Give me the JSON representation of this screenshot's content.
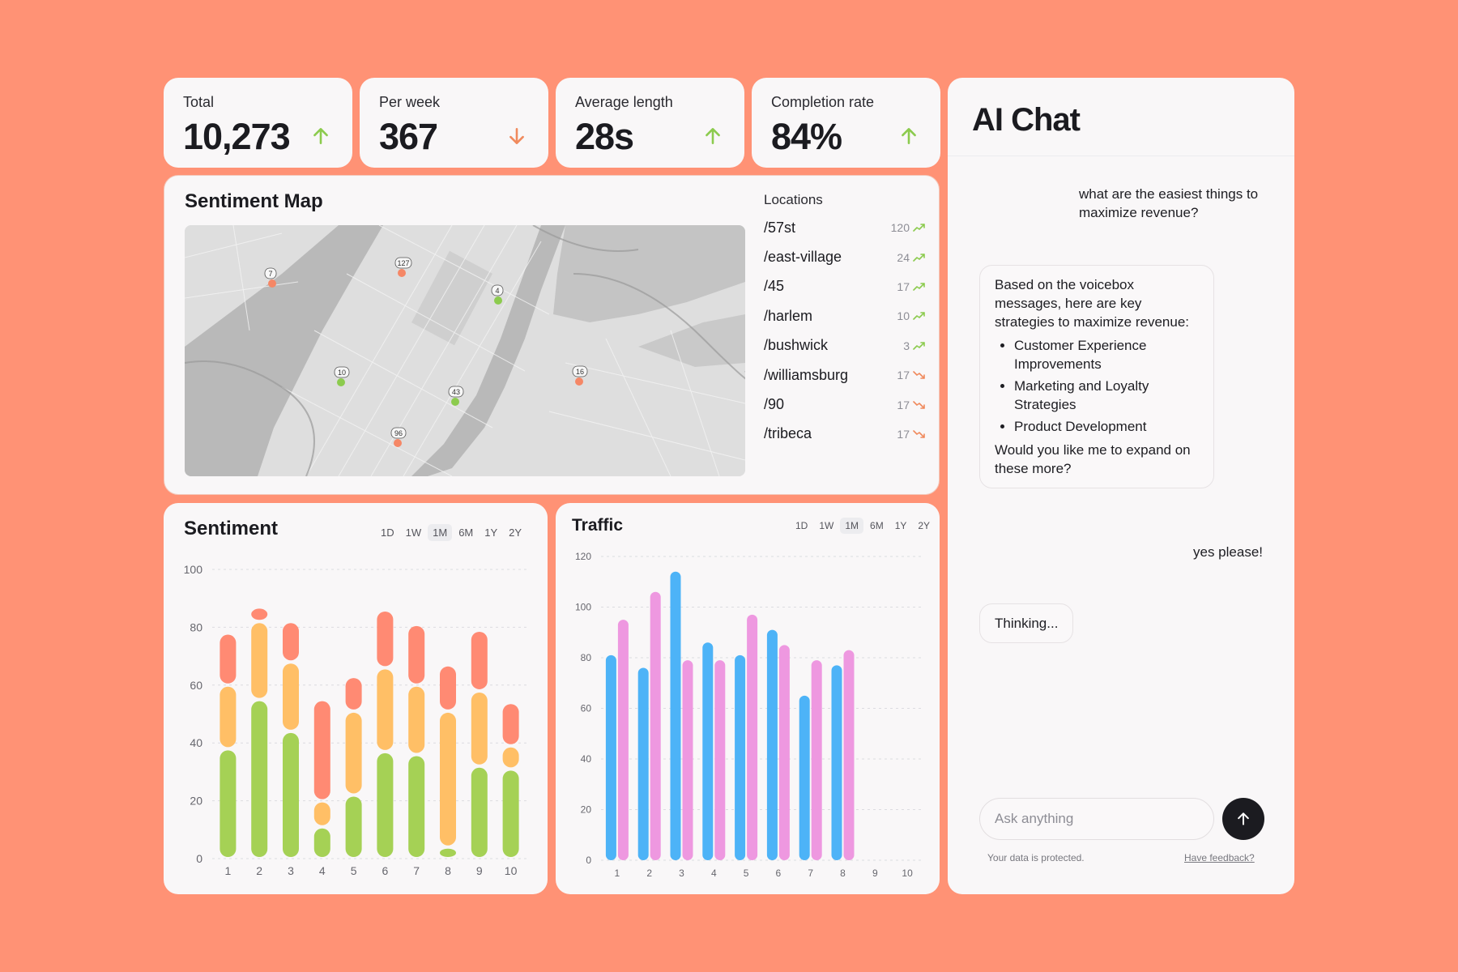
{
  "stats": [
    {
      "label": "Total",
      "value": "10,273",
      "trend": "up"
    },
    {
      "label": "Per week",
      "value": "367",
      "trend": "down"
    },
    {
      "label": "Average length",
      "value": "28s",
      "trend": "up"
    },
    {
      "label": "Completion rate",
      "value": "84%",
      "trend": "up"
    }
  ],
  "colors": {
    "background": "#FF9275",
    "trend_up": "#8CCB4E",
    "trend_down": "#F08A5D",
    "sentiment_positive": "#A5D155",
    "sentiment_neutral": "#FFBF66",
    "sentiment_negative": "#FF8A73",
    "traffic_blue": "#4DB3F7",
    "traffic_pink": "#EE98E0"
  },
  "sentiment_map": {
    "title": "Sentiment Map",
    "locations_header": "Locations",
    "locations": [
      {
        "name": "/57st",
        "count": "120",
        "trend": "up"
      },
      {
        "name": "/east-village",
        "count": "24",
        "trend": "up"
      },
      {
        "name": "/45",
        "count": "17",
        "trend": "up"
      },
      {
        "name": "/harlem",
        "count": "10",
        "trend": "up"
      },
      {
        "name": "/bushwick",
        "count": "3",
        "trend": "up"
      },
      {
        "name": "/williamsburg",
        "count": "17",
        "trend": "down"
      },
      {
        "name": "/90",
        "count": "17",
        "trend": "down"
      },
      {
        "name": "/tribeca",
        "count": "17",
        "trend": "down"
      }
    ],
    "markers": [
      {
        "label": "7",
        "sentiment": "negative"
      },
      {
        "label": "127",
        "sentiment": "negative"
      },
      {
        "label": "4",
        "sentiment": "positive"
      },
      {
        "label": "10",
        "sentiment": "positive"
      },
      {
        "label": "43",
        "sentiment": "positive"
      },
      {
        "label": "96",
        "sentiment": "negative"
      },
      {
        "label": "16",
        "sentiment": "negative"
      }
    ]
  },
  "sentiment_chart": {
    "title": "Sentiment",
    "ranges": [
      "1D",
      "1W",
      "1M",
      "6M",
      "1Y",
      "2Y"
    ],
    "active_range": "1M"
  },
  "traffic_chart": {
    "title": "Traffic",
    "ranges": [
      "1D",
      "1W",
      "1M",
      "6M",
      "1Y",
      "2Y"
    ],
    "active_range": "1M"
  },
  "chart_data": [
    {
      "type": "bar",
      "title": "Sentiment",
      "stacked": true,
      "categories": [
        "1",
        "2",
        "3",
        "4",
        "5",
        "6",
        "7",
        "8",
        "9",
        "10"
      ],
      "ylim": [
        0,
        100
      ],
      "yticks": [
        0,
        20,
        40,
        60,
        80,
        100
      ],
      "series": [
        {
          "color": "#A5D155",
          "values": [
            38,
            55,
            44,
            11,
            22,
            37,
            36,
            4,
            32,
            31
          ]
        },
        {
          "color": "#FFBF66",
          "values": [
            22,
            27,
            24,
            9,
            29,
            29,
            24,
            47,
            26,
            8
          ]
        },
        {
          "color": "#FF8A73",
          "values": [
            18,
            5,
            14,
            35,
            12,
            20,
            21,
            16,
            21,
            15
          ]
        }
      ],
      "grid": true
    },
    {
      "type": "bar",
      "title": "Traffic",
      "categories": [
        "1",
        "2",
        "3",
        "4",
        "5",
        "6",
        "7",
        "8",
        "9",
        "10"
      ],
      "ylim": [
        0,
        120
      ],
      "yticks": [
        0,
        20,
        40,
        60,
        80,
        100,
        120
      ],
      "series": [
        {
          "color": "#4DB3F7",
          "values": [
            81,
            76,
            114,
            86,
            81,
            91,
            65,
            77,
            0,
            0
          ]
        },
        {
          "color": "#EE98E0",
          "values": [
            95,
            106,
            79,
            79,
            97,
            85,
            79,
            83,
            0,
            0
          ]
        }
      ],
      "grid": true
    }
  ],
  "chat": {
    "title": "AI Chat",
    "user_message_1": "what are the easiest things to maximize revenue?",
    "ai_intro": "Based on the voicebox messages, here are key strategies to maximize revenue:",
    "ai_bullets": [
      "Customer Experience Improvements",
      "Marketing and Loyalty Strategies",
      "Product Development"
    ],
    "ai_outro": "Would you like me to expand on these more?",
    "user_message_2": "yes please!",
    "thinking": "Thinking...",
    "input_placeholder": "Ask anything",
    "footnote": "Your data is protected.",
    "feedback_link": "Have feedback?"
  }
}
